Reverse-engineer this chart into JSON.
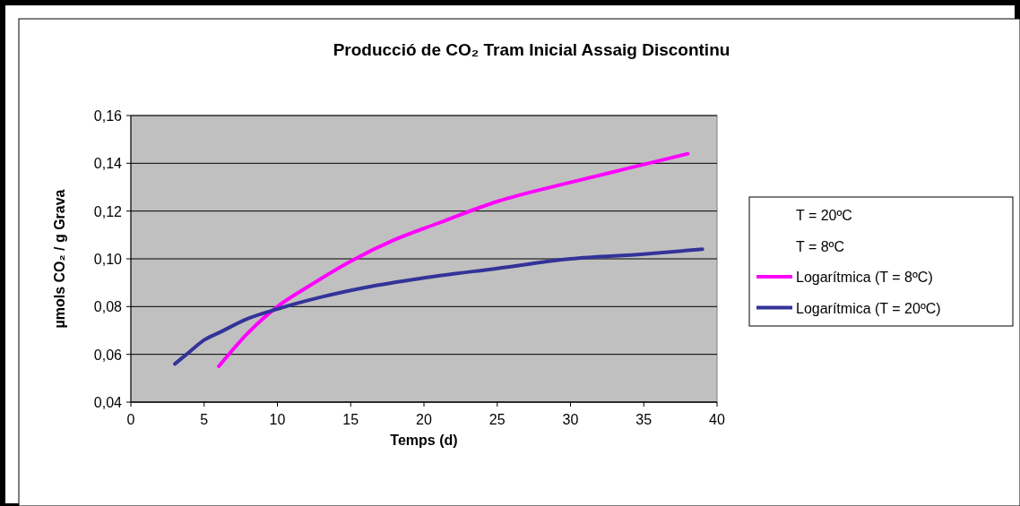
{
  "chart_data": {
    "type": "line",
    "title": "Producció de CO₂ Tram Inicial Assaig Discontinu",
    "xlabel": "Temps (d)",
    "ylabel": "µmols CO₂ / g Grava",
    "xlim": [
      0,
      40
    ],
    "xticks": [
      0,
      5,
      10,
      15,
      20,
      25,
      30,
      35,
      40
    ],
    "ylim": [
      0.04,
      0.16
    ],
    "yticks": [
      {
        "value": 0.04,
        "label": "0,04"
      },
      {
        "value": 0.06,
        "label": "0,06"
      },
      {
        "value": 0.08,
        "label": "0,08"
      },
      {
        "value": 0.1,
        "label": "0,10"
      },
      {
        "value": 0.12,
        "label": "0,12"
      },
      {
        "value": 0.14,
        "label": "0,14"
      },
      {
        "value": 0.16,
        "label": "0,16"
      }
    ],
    "grid": "y",
    "legend": "right",
    "marker": "none",
    "line_style": "solid",
    "series": [
      {
        "name": "T = 20ºC"
      },
      {
        "name": "T = 8ºC"
      },
      {
        "name": "Logarítmica (T = 8ºC)",
        "color": "#ff00ff",
        "x": [
          6,
          8,
          10,
          12,
          15,
          18,
          21,
          25,
          30,
          34,
          38
        ],
        "values": [
          0.055,
          0.069,
          0.08,
          0.088,
          0.099,
          0.108,
          0.115,
          0.124,
          0.132,
          0.138,
          0.144
        ]
      },
      {
        "name": "Logarítmica (T = 20ºC)",
        "color": "#333399",
        "x": [
          3,
          4,
          5,
          6,
          8,
          10,
          13,
          16,
          20,
          25,
          30,
          35,
          39
        ],
        "values": [
          0.056,
          0.061,
          0.066,
          0.069,
          0.075,
          0.079,
          0.084,
          0.088,
          0.092,
          0.096,
          0.1,
          0.102,
          0.104
        ]
      }
    ]
  }
}
